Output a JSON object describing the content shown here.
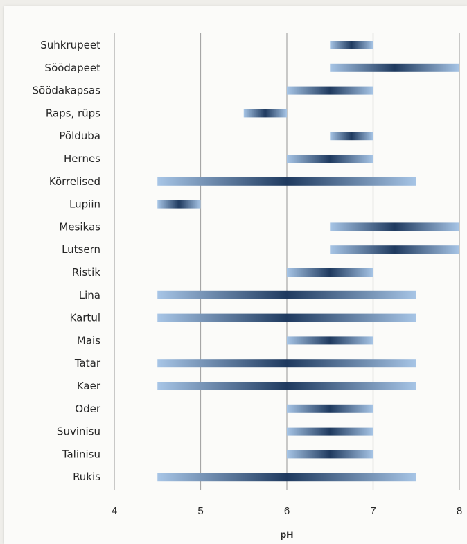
{
  "chart_data": {
    "type": "bar",
    "orientation": "horizontal-range",
    "xlabel": "pH",
    "xlim": [
      4,
      8
    ],
    "xticks": [
      4,
      5,
      6,
      7,
      8
    ],
    "grid": true,
    "legend": "none",
    "colors": {
      "edge": "#a7c5e6",
      "center": "#1f3a5f",
      "grid": "#a6a6a6"
    },
    "categories": [
      "Suhkrupeet",
      "Söödapeet",
      "Söödakapsas",
      "Raps, rüps",
      "Põlduba",
      "Hernes",
      "Kõrrelised",
      "Lupiin",
      "Mesikas",
      "Lutsern",
      "Ristik",
      "Lina",
      "Kartul",
      "Mais",
      "Tatar",
      "Kaer",
      "Oder",
      "Suvinisu",
      "Talinisu",
      "Rukis"
    ],
    "ranges": [
      [
        6.5,
        7.0
      ],
      [
        6.5,
        8.0
      ],
      [
        6.0,
        7.0
      ],
      [
        5.5,
        6.0
      ],
      [
        6.5,
        7.0
      ],
      [
        6.0,
        7.0
      ],
      [
        4.5,
        7.5
      ],
      [
        4.5,
        5.0
      ],
      [
        6.5,
        8.0
      ],
      [
        6.5,
        8.0
      ],
      [
        6.0,
        7.0
      ],
      [
        4.5,
        7.5
      ],
      [
        4.5,
        7.5
      ],
      [
        6.0,
        7.0
      ],
      [
        4.5,
        7.5
      ],
      [
        4.5,
        7.5
      ],
      [
        6.0,
        7.0
      ],
      [
        6.0,
        7.0
      ],
      [
        6.0,
        7.0
      ],
      [
        4.5,
        7.5
      ]
    ]
  }
}
